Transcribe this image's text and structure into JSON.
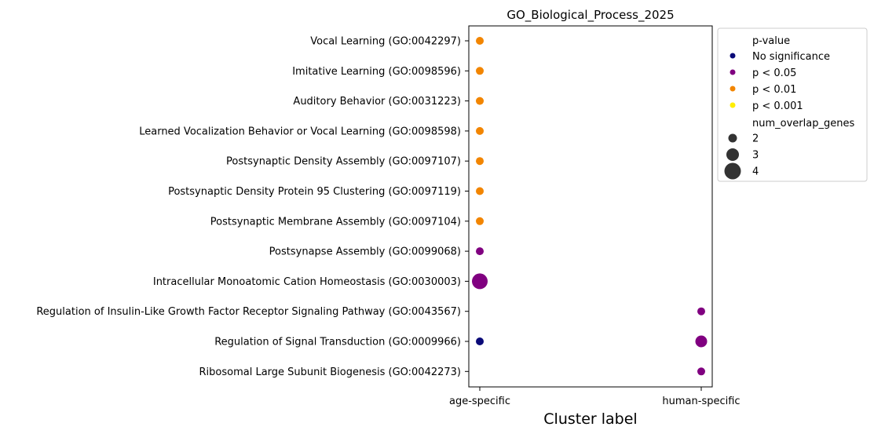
{
  "chart_data": {
    "type": "scatter",
    "title": "GO_Biological_Process_2025",
    "xlabel": "Cluster label",
    "ylabel": "",
    "categories_x": [
      "age-specific",
      "human-specific"
    ],
    "categories_y": [
      "Vocal Learning (GO:0042297)",
      "Imitative Learning (GO:0098596)",
      "Auditory Behavior (GO:0031223)",
      "Learned Vocalization Behavior or Vocal Learning (GO:0098598)",
      "Postsynaptic Density Assembly (GO:0097107)",
      "Postsynaptic Density Protein 95 Clustering (GO:0097119)",
      "Postsynaptic Membrane Assembly (GO:0097104)",
      "Postsynapse Assembly (GO:0099068)",
      "Intracellular Monoatomic Cation Homeostasis (GO:0030003)",
      "Regulation of Insulin-Like Growth Factor Receptor Signaling Pathway (GO:0043567)",
      "Regulation of Signal Transduction (GO:0009966)",
      "Ribosomal Large Subunit Biogenesis (GO:0042273)"
    ],
    "points": [
      {
        "x": "age-specific",
        "y": "Vocal Learning (GO:0042297)",
        "pvalue_class": "p < 0.01",
        "num_overlap_genes": 2
      },
      {
        "x": "age-specific",
        "y": "Imitative Learning (GO:0098596)",
        "pvalue_class": "p < 0.01",
        "num_overlap_genes": 2
      },
      {
        "x": "age-specific",
        "y": "Auditory Behavior (GO:0031223)",
        "pvalue_class": "p < 0.01",
        "num_overlap_genes": 2
      },
      {
        "x": "age-specific",
        "y": "Learned Vocalization Behavior or Vocal Learning (GO:0098598)",
        "pvalue_class": "p < 0.01",
        "num_overlap_genes": 2
      },
      {
        "x": "age-specific",
        "y": "Postsynaptic Density Assembly (GO:0097107)",
        "pvalue_class": "p < 0.01",
        "num_overlap_genes": 2
      },
      {
        "x": "age-specific",
        "y": "Postsynaptic Density Protein 95 Clustering (GO:0097119)",
        "pvalue_class": "p < 0.01",
        "num_overlap_genes": 2
      },
      {
        "x": "age-specific",
        "y": "Postsynaptic Membrane Assembly (GO:0097104)",
        "pvalue_class": "p < 0.01",
        "num_overlap_genes": 2
      },
      {
        "x": "age-specific",
        "y": "Postsynapse Assembly (GO:0099068)",
        "pvalue_class": "p < 0.05",
        "num_overlap_genes": 2
      },
      {
        "x": "age-specific",
        "y": "Intracellular Monoatomic Cation Homeostasis (GO:0030003)",
        "pvalue_class": "p < 0.05",
        "num_overlap_genes": 4
      },
      {
        "x": "human-specific",
        "y": "Regulation of Insulin-Like Growth Factor Receptor Signaling Pathway (GO:0043567)",
        "pvalue_class": "p < 0.05",
        "num_overlap_genes": 2
      },
      {
        "x": "age-specific",
        "y": "Regulation of Signal Transduction (GO:0009966)",
        "pvalue_class": "No significance",
        "num_overlap_genes": 2
      },
      {
        "x": "human-specific",
        "y": "Regulation of Signal Transduction (GO:0009966)",
        "pvalue_class": "p < 0.05",
        "num_overlap_genes": 3
      },
      {
        "x": "human-specific",
        "y": "Ribosomal Large Subunit Biogenesis (GO:0042273)",
        "pvalue_class": "p < 0.05",
        "num_overlap_genes": 2
      }
    ],
    "legend": {
      "placement": "outside-upper-right",
      "color_title": "p-value",
      "color_entries": [
        {
          "label": "No significance",
          "color": "#0a0a78"
        },
        {
          "label": "p < 0.05",
          "color": "#800080"
        },
        {
          "label": "p < 0.01",
          "color": "#f28500"
        },
        {
          "label": "p < 0.001",
          "color": "#ffee00"
        }
      ],
      "size_title": "num_overlap_genes",
      "size_entries": [
        {
          "label": "2",
          "value": 2
        },
        {
          "label": "3",
          "value": 3
        },
        {
          "label": "4",
          "value": 4
        }
      ],
      "size_color": "#333333"
    },
    "grid": false
  }
}
